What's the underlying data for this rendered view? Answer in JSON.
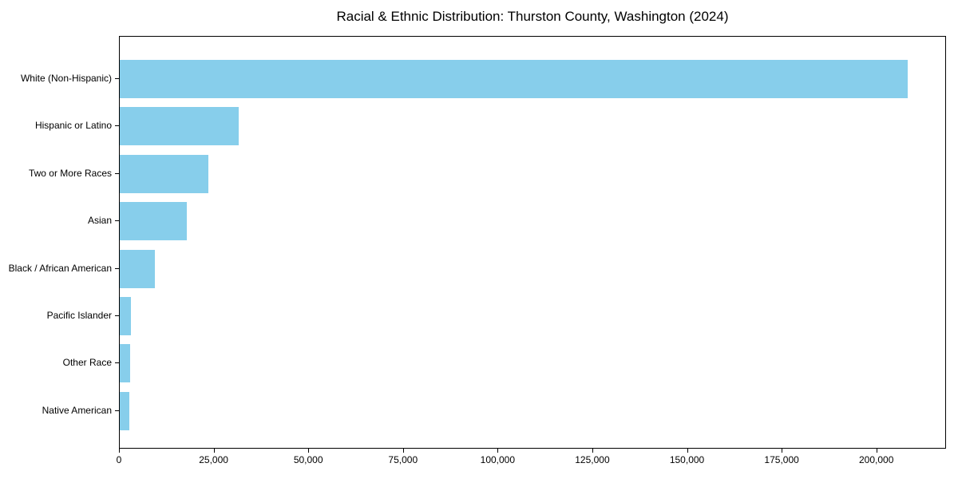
{
  "figure": {
    "background": "#ffffff",
    "text_color": "#000000"
  },
  "chart_data": {
    "type": "bar",
    "orientation": "horizontal",
    "title": "Racial & Ethnic Distribution: Thurston County, Washington (2024)",
    "xlabel": "",
    "ylabel": "",
    "categories": [
      "White (Non-Hispanic)",
      "Hispanic or Latino",
      "Two or More Races",
      "Asian",
      "Black / African American",
      "Pacific Islander",
      "Other Race",
      "Native American"
    ],
    "values": [
      208000,
      31400,
      23500,
      17800,
      9300,
      3000,
      2800,
      2600
    ],
    "bar_color": "#87CEEB",
    "xlim": [
      0,
      218400
    ],
    "x_ticks": [
      0,
      25000,
      50000,
      75000,
      100000,
      125000,
      150000,
      175000,
      200000
    ],
    "x_tick_labels": [
      "0",
      "25,000",
      "50,000",
      "75,000",
      "100,000",
      "125,000",
      "150,000",
      "175,000",
      "200,000"
    ],
    "grid": false,
    "legend": false
  }
}
